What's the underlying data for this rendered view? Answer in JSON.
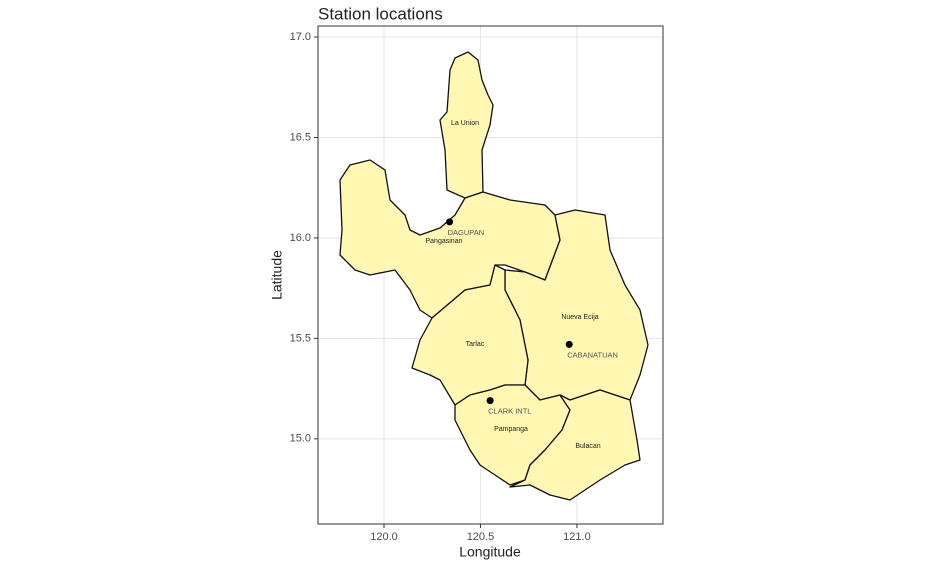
{
  "chart_data": {
    "type": "map",
    "title": "Station locations",
    "x_label": "Longitude",
    "y_label": "Latitude",
    "stations": [
      "DAGUPAN",
      "CABANATUAN",
      "CLARK INTL"
    ],
    "x": [
      120.34,
      120.96,
      120.55
    ],
    "values": [
      16.08,
      15.47,
      15.19
    ],
    "provinces": [
      "La Union",
      "Pangasinan",
      "Nueva Ecija",
      "Tarlac",
      "Pampanga",
      "Bulacan"
    ],
    "fill": "#fff7b2",
    "point_color": "#000000",
    "xlim": [
      119.658,
      121.446
    ],
    "ylim": [
      14.576,
      17.055
    ],
    "xticks": [
      {
        "value": 120,
        "label": "120.0"
      },
      {
        "value": 120.5,
        "label": "120.5"
      },
      {
        "value": 121,
        "label": "121.0"
      }
    ],
    "yticks": [
      {
        "value": 15,
        "label": "15.0"
      },
      {
        "value": 15.5,
        "label": "15.5"
      },
      {
        "value": 16,
        "label": "16.0"
      },
      {
        "value": 16.5,
        "label": "16.5"
      },
      {
        "value": 17,
        "label": "17.0"
      }
    ],
    "grid": true
  }
}
